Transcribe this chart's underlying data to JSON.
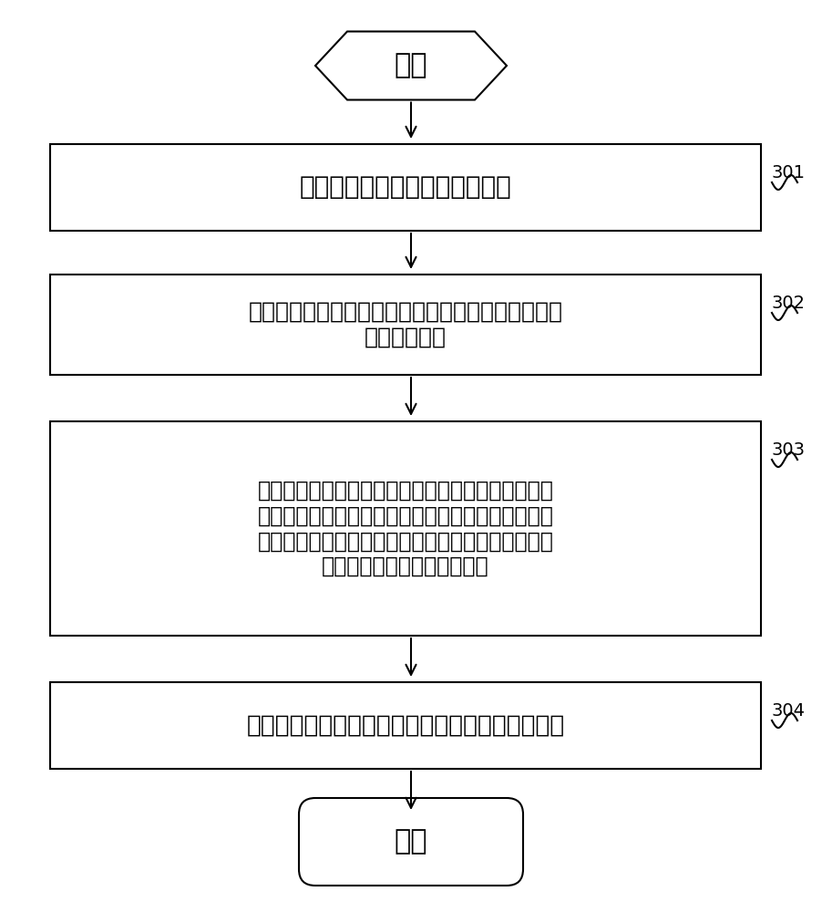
{
  "bg_color": "#ffffff",
  "start_label": "开始",
  "end_label": "结束",
  "step1_label": "充电器与移动终端建立充电连接",
  "step2_line1": "获取当前充电环境的环境参数，并将所述环境参数上",
  "step2_line2": "传到充电云端",
  "step3_line1": "接收所述充电云端根据历史充电数据返回的与所述环",
  "step3_line2": "境参数对应的目标充电参数，所述目标充电参数是指",
  "step3_line3": "所述历史充电数据中，与当前充电环境的环境参数对",
  "step3_line4": "应的充电时间最短的充电参数",
  "step4_label": "根据所述目标充电参数，对所述移动终端进行充电",
  "label301": "301",
  "label302": "302",
  "label303": "303",
  "label304": "304",
  "font_size_main": 17,
  "font_size_label": 13,
  "lw": 1.5
}
